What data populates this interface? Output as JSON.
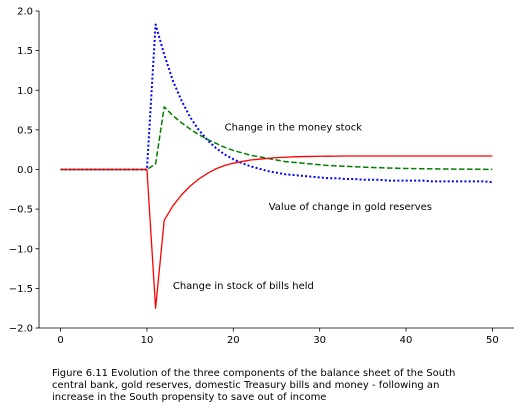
{
  "chart_data": {
    "type": "line",
    "title": "",
    "xlabel": "",
    "ylabel": "",
    "xlim": [
      -2.5,
      52.5
    ],
    "ylim": [
      -2.0,
      2.0
    ],
    "xticks": [
      0,
      10,
      20,
      30,
      40,
      50
    ],
    "yticks": [
      -2.0,
      -1.5,
      -1.0,
      -0.5,
      0.0,
      0.5,
      1.0,
      1.5,
      2.0
    ],
    "xtick_labels": [
      "0",
      "10",
      "20",
      "30",
      "40",
      "50"
    ],
    "ytick_labels": [
      "−2.0",
      "−1.5",
      "−1.0",
      "−0.5",
      "0.0",
      "0.5",
      "1.0",
      "1.5",
      "2.0"
    ],
    "grid": false,
    "series": [
      {
        "color": "#0000ff",
        "style": "dotted",
        "x": [
          0,
          1,
          2,
          3,
          4,
          5,
          6,
          7,
          8,
          9,
          10,
          11,
          12,
          13,
          14,
          15,
          16,
          17,
          18,
          19,
          20,
          21,
          22,
          23,
          24,
          25,
          26,
          27,
          28,
          29,
          30,
          31,
          32,
          33,
          34,
          35,
          36,
          37,
          38,
          39,
          40,
          41,
          42,
          43,
          44,
          45,
          46,
          47,
          48,
          49,
          50
        ],
        "y": [
          0,
          0,
          0,
          0,
          0,
          0,
          0,
          0,
          0,
          0,
          0,
          1.83,
          1.45,
          1.12,
          0.87,
          0.66,
          0.5,
          0.37,
          0.27,
          0.19,
          0.13,
          0.08,
          0.04,
          0.01,
          -0.02,
          -0.04,
          -0.06,
          -0.07,
          -0.08,
          -0.09,
          -0.1,
          -0.11,
          -0.11,
          -0.12,
          -0.12,
          -0.13,
          -0.13,
          -0.13,
          -0.14,
          -0.14,
          -0.14,
          -0.14,
          -0.14,
          -0.15,
          -0.15,
          -0.15,
          -0.15,
          -0.15,
          -0.15,
          -0.15,
          -0.16
        ]
      },
      {
        "color": "#008000",
        "style": "dashed",
        "x": [
          0,
          1,
          2,
          3,
          4,
          5,
          6,
          7,
          8,
          9,
          10,
          11,
          12,
          13,
          14,
          15,
          16,
          17,
          18,
          19,
          20,
          21,
          22,
          23,
          24,
          25,
          26,
          27,
          28,
          29,
          30,
          31,
          32,
          33,
          34,
          35,
          36,
          37,
          38,
          39,
          40,
          41,
          42,
          43,
          44,
          45,
          46,
          47,
          48,
          49,
          50
        ],
        "y": [
          0,
          0,
          0,
          0,
          0,
          0,
          0,
          0,
          0,
          0,
          0,
          0.07,
          0.79,
          0.68,
          0.59,
          0.51,
          0.44,
          0.38,
          0.33,
          0.28,
          0.24,
          0.21,
          0.18,
          0.16,
          0.14,
          0.12,
          0.1,
          0.09,
          0.08,
          0.07,
          0.06,
          0.05,
          0.045,
          0.04,
          0.035,
          0.03,
          0.026,
          0.022,
          0.019,
          0.016,
          0.013,
          0.011,
          0.01,
          0.008,
          0.007,
          0.006,
          0.005,
          0.004,
          0.003,
          0.002,
          0.002
        ]
      },
      {
        "color": "#ff0000",
        "style": "solid",
        "x": [
          0,
          1,
          2,
          3,
          4,
          5,
          6,
          7,
          8,
          9,
          10,
          11,
          12,
          13,
          14,
          15,
          16,
          17,
          18,
          19,
          20,
          21,
          22,
          23,
          24,
          25,
          26,
          27,
          28,
          29,
          30,
          31,
          32,
          33,
          34,
          35,
          36,
          37,
          38,
          39,
          40,
          41,
          42,
          43,
          44,
          45,
          46,
          47,
          48,
          49,
          50
        ],
        "y": [
          0,
          0,
          0,
          0,
          0,
          0,
          0,
          0,
          0,
          0,
          0,
          -1.75,
          -0.64,
          -0.46,
          -0.32,
          -0.21,
          -0.12,
          -0.05,
          0.01,
          0.05,
          0.08,
          0.1,
          0.12,
          0.13,
          0.14,
          0.15,
          0.155,
          0.16,
          0.163,
          0.165,
          0.167,
          0.168,
          0.169,
          0.17,
          0.17,
          0.17,
          0.17,
          0.17,
          0.17,
          0.17,
          0.17,
          0.17,
          0.17,
          0.17,
          0.17,
          0.17,
          0.17,
          0.17,
          0.17,
          0.17,
          0.17
        ]
      }
    ],
    "annotations": [
      {
        "text": "Change in the money stock",
        "x": 19,
        "y": 0.49
      },
      {
        "text": "Value of change in gold reserves",
        "x": 24.1,
        "y": -0.51
      },
      {
        "text": "Change in stock of bills held",
        "x": 13,
        "y": -1.51
      }
    ]
  },
  "caption": {
    "line1": "Figure 6.11  Evolution of the three components of the balance sheet of the South",
    "line2": "central bank, gold reserves, domestic Treasury bills and money - following an",
    "line3": "increase in the South propensity to save out of income"
  }
}
